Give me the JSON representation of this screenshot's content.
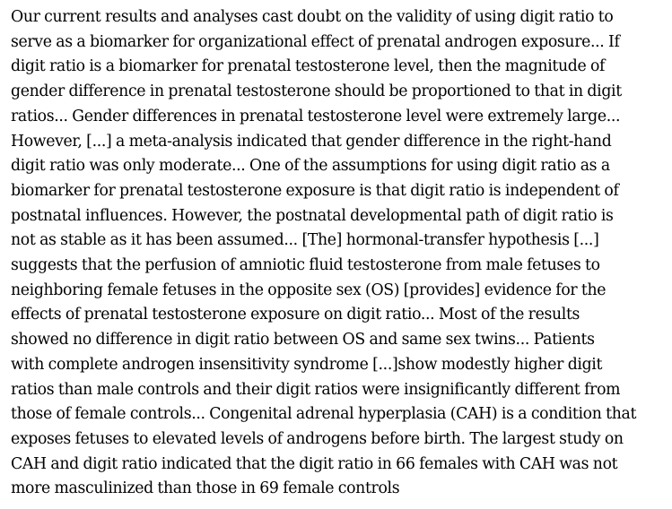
{
  "document": {
    "lines": [
      "Our current results and analyses cast doubt on the validity of using digit ratio to",
      "serve as a biomarker for organizational effect of prenatal androgen exposure... If",
      "digit ratio is a biomarker for prenatal testosterone level, then the magnitude of",
      "gender difference in prenatal testosterone should be proportioned to that in digit",
      "ratios... Gender differences in prenatal testosterone level were extremely large...",
      "However, [...]  a meta-analysis indicated that gender difference in the right-hand",
      "digit ratio was only moderate... One of the assumptions for using digit ratio as a",
      "biomarker for prenatal testosterone exposure is that digit ratio is independent of",
      "postnatal influences. However, the postnatal developmental path of digit ratio is",
      "not as stable as it has been assumed... [The]  hormonal-transfer hypothesis [...]",
      "suggests that the perfusion of amniotic fluid testosterone from male fetuses to",
      "neighboring female fetuses in the opposite sex (OS)  [provides] evidence for the",
      "effects of prenatal testosterone exposure on digit ratio... Most of the results",
      "showed no difference in digit ratio between OS and same sex  twins... Patients",
      "with complete androgen insensitivity syndrome [...]show modestly higher digit",
      "ratios than male controls and their digit ratios were insignificantly different from",
      "those of female controls... Congenital adrenal hyperplasia (CAH) is a condition that",
      "exposes fetuses to elevated levels of androgens before birth. The largest study on",
      "CAH and digit ratio indicated that the digit ratio in 66 females with CAH was not",
      "more masculinized than those in 69 female controls"
    ]
  }
}
